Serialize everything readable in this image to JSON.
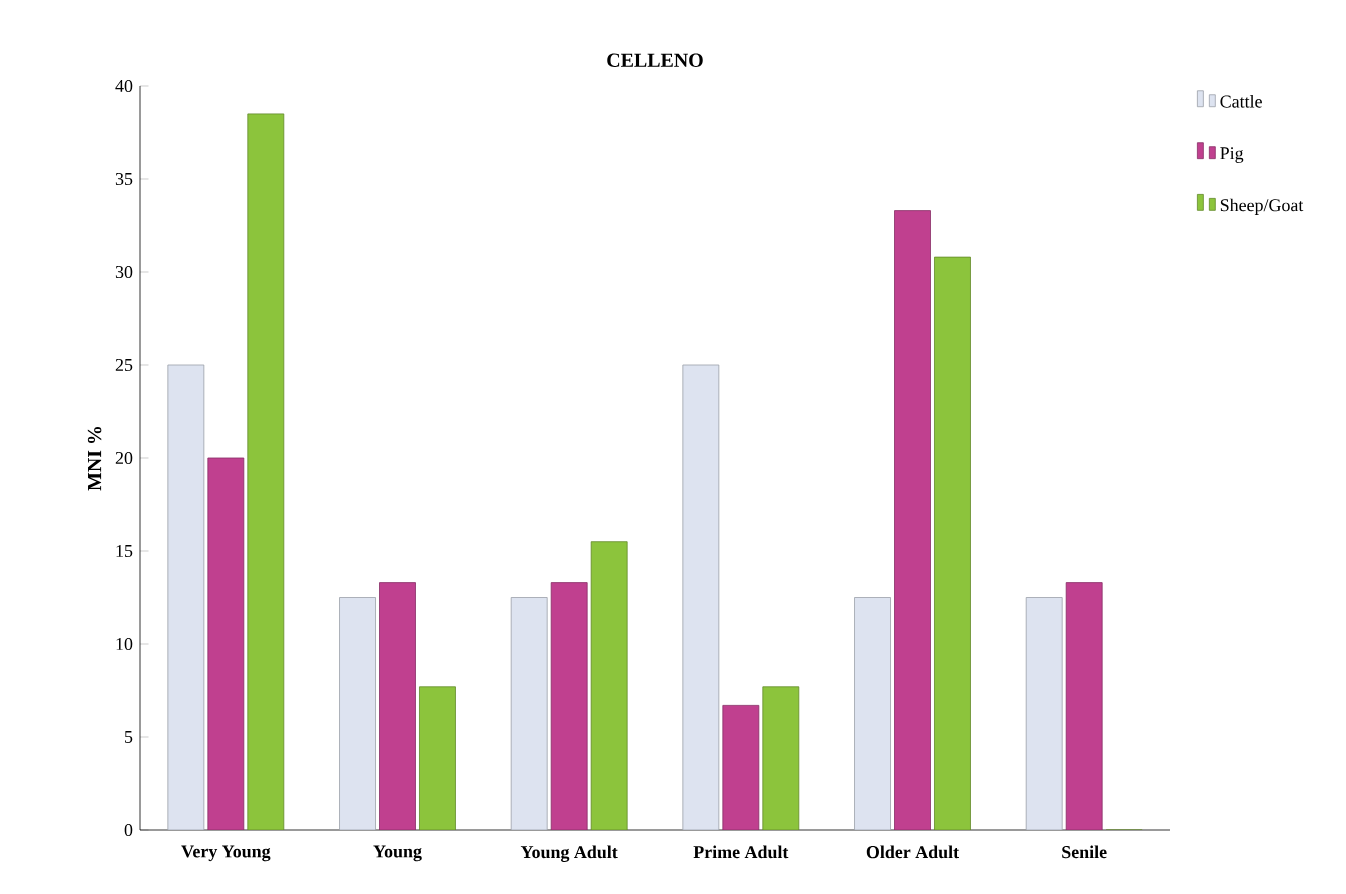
{
  "chart_data": {
    "type": "bar",
    "title": "CELLENO",
    "ylabel": "MNI %",
    "categories": [
      "Very Young",
      "Young",
      "Young Adult",
      "Prime Adult",
      "Older Adult",
      "Senile"
    ],
    "series": [
      {
        "name": "Cattle",
        "color": "#dde3f0",
        "values": [
          25,
          12.5,
          12.5,
          25,
          12.5,
          12.5
        ]
      },
      {
        "name": "Pig",
        "color": "#c0408f",
        "values": [
          20,
          13.3,
          13.3,
          6.7,
          33.3,
          13.3
        ]
      },
      {
        "name": "Sheep/Goat",
        "color": "#8cc43c",
        "values": [
          38.5,
          7.7,
          15.5,
          7.7,
          30.8,
          0
        ]
      }
    ],
    "ylim": [
      0,
      40
    ],
    "yticks": [
      0,
      5,
      10,
      15,
      20,
      25,
      30,
      35,
      40
    ],
    "legend": "top right",
    "grid": false
  }
}
